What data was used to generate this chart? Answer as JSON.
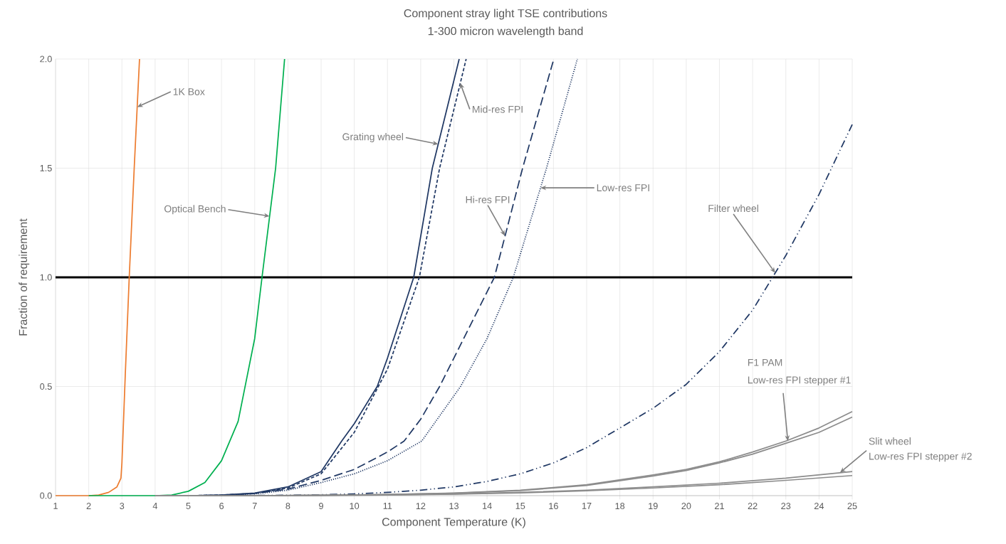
{
  "chart_data": {
    "type": "line",
    "title": "Component stray light TSE contributions",
    "subtitle": "1-300 micron wavelength band",
    "xlabel": "Component Temperature (K)",
    "ylabel": "Fraction of requirement",
    "xlim": [
      1,
      25
    ],
    "ylim": [
      0,
      2.0
    ],
    "xticks": [
      1,
      2,
      3,
      4,
      5,
      6,
      7,
      8,
      9,
      10,
      11,
      12,
      13,
      14,
      15,
      16,
      17,
      18,
      19,
      20,
      21,
      22,
      23,
      24,
      25
    ],
    "yticks": [
      {
        "value": 0,
        "label": "0.0"
      },
      {
        "value": 0.5,
        "label": "0.5"
      },
      {
        "value": 1.0,
        "label": "1.0"
      },
      {
        "value": 1.5,
        "label": "1.5"
      },
      {
        "value": 2.0,
        "label": "2.0"
      }
    ],
    "grid": true,
    "ref_lines": [
      {
        "axis": "y",
        "value": 1.0,
        "color": "#000000"
      }
    ],
    "annotations": [
      {
        "text": "1K Box",
        "x": 3.46,
        "y": 1.78
      },
      {
        "text": "Optical Bench",
        "x": 7.45,
        "y": 1.28
      },
      {
        "text": "Grating wheel",
        "x": 12.53,
        "y": 1.61
      },
      {
        "text": "Mid-res FPI",
        "x": 13.19,
        "y": 1.89
      },
      {
        "text": "Hi-res FPI",
        "x": 14.54,
        "y": 1.19
      },
      {
        "text": "Low-res FPI",
        "x": 15.61,
        "y": 1.41
      },
      {
        "text": "Filter wheel",
        "x": 22.68,
        "y": 1.02
      },
      "F1 PAM",
      {
        "text": "Low-res FPI stepper #1",
        "x": 23.06,
        "y": 0.25
      },
      "Slit wheel",
      {
        "text": "Low-res FPI stepper #2",
        "x": 24.63,
        "y": 0.105
      }
    ],
    "series": [
      {
        "color": "#ed7d31",
        "line_style": "solid",
        "x": [
          1,
          2,
          2.3,
          2.6,
          2.85,
          2.97,
          3.0,
          3.1,
          3.22,
          3.37,
          3.53
        ],
        "values": [
          0,
          0,
          0.003,
          0.015,
          0.04,
          0.08,
          0.15,
          0.55,
          1.0,
          1.5,
          2.0
        ]
      },
      {
        "color": "#00b050",
        "line_style": "solid",
        "x": [
          2,
          4,
          4.5,
          5,
          5.5,
          6,
          6.5,
          7,
          7.22,
          7.63,
          7.9
        ],
        "values": [
          0,
          0,
          0.003,
          0.02,
          0.06,
          0.16,
          0.34,
          0.72,
          1.0,
          1.5,
          2.0
        ]
      },
      {
        "color": "#203864",
        "line_style": "solid",
        "x": [
          5,
          6,
          7,
          8,
          9,
          9.62,
          10,
          10.69,
          11,
          11.79,
          12.35,
          13.16
        ],
        "values": [
          0,
          0.003,
          0.012,
          0.04,
          0.11,
          0.25,
          0.33,
          0.5,
          0.63,
          1.0,
          1.5,
          2.0
        ]
      },
      {
        "color": "#203864",
        "line_style": "dashed",
        "x": [
          5,
          6,
          7,
          8,
          9,
          10,
          11,
          11.96,
          12.57,
          13.37
        ],
        "values": [
          0,
          0.003,
          0.01,
          0.035,
          0.1,
          0.29,
          0.58,
          1.0,
          1.5,
          2.0
        ]
      },
      {
        "color": "#203864",
        "line_style": "longdashed",
        "x": [
          5,
          6,
          7,
          8,
          9,
          10,
          11,
          11.5,
          12,
          12.57,
          13,
          14.22,
          15.07,
          16.01
        ],
        "values": [
          0,
          0.002,
          0.01,
          0.03,
          0.07,
          0.12,
          0.2,
          0.25,
          0.35,
          0.5,
          0.63,
          1.0,
          1.5,
          2.0
        ]
      },
      {
        "color": "#203864",
        "line_style": "dotted",
        "x": [
          5,
          6,
          7,
          8,
          9,
          10,
          11,
          12.03,
          13.2,
          14,
          14.79,
          15.79,
          16.72
        ],
        "values": [
          0,
          0.002,
          0.008,
          0.025,
          0.06,
          0.1,
          0.16,
          0.25,
          0.5,
          0.72,
          1.0,
          1.5,
          2.0
        ]
      },
      {
        "color": "#203864",
        "line_style": "dashdotdotted",
        "x": [
          6,
          8,
          9,
          10,
          11,
          12,
          13,
          14,
          15,
          16,
          17,
          18,
          19,
          20,
          21,
          22,
          23,
          24,
          25
        ],
        "values": [
          0,
          0.002,
          0.004,
          0.008,
          0.015,
          0.025,
          0.04,
          0.065,
          0.1,
          0.15,
          0.22,
          0.31,
          0.4,
          0.51,
          0.66,
          0.85,
          1.1,
          1.38,
          1.7
        ]
      },
      {
        "color": "#8c8c8c",
        "line_style": "solid",
        "x": [
          4,
          7,
          9,
          11,
          13,
          15,
          17,
          19,
          20,
          21,
          22,
          23,
          24,
          25
        ],
        "values": [
          0,
          0,
          0.002,
          0.005,
          0.012,
          0.025,
          0.05,
          0.095,
          0.12,
          0.155,
          0.2,
          0.25,
          0.31,
          0.385
        ]
      },
      {
        "color": "#8c8c8c",
        "line_style": "solid",
        "x": [
          4,
          7,
          9,
          11,
          13,
          15,
          17,
          19,
          20,
          21,
          22,
          23,
          24,
          25
        ],
        "values": [
          0,
          0,
          0.002,
          0.005,
          0.011,
          0.023,
          0.047,
          0.09,
          0.115,
          0.15,
          0.19,
          0.24,
          0.29,
          0.36
        ]
      },
      {
        "color": "#8c8c8c",
        "line_style": "solid",
        "x": [
          4,
          7,
          9,
          11,
          13,
          15,
          17,
          19,
          21,
          23,
          25
        ],
        "values": [
          0,
          0,
          0.001,
          0.004,
          0.008,
          0.015,
          0.025,
          0.04,
          0.057,
          0.08,
          0.11
        ]
      },
      {
        "color": "#8c8c8c",
        "line_style": "solid",
        "x": [
          4,
          7,
          9,
          11,
          13,
          15,
          17,
          19,
          21,
          23,
          25
        ],
        "values": [
          0,
          0,
          0.001,
          0.003,
          0.007,
          0.013,
          0.022,
          0.035,
          0.05,
          0.07,
          0.092
        ]
      }
    ]
  }
}
